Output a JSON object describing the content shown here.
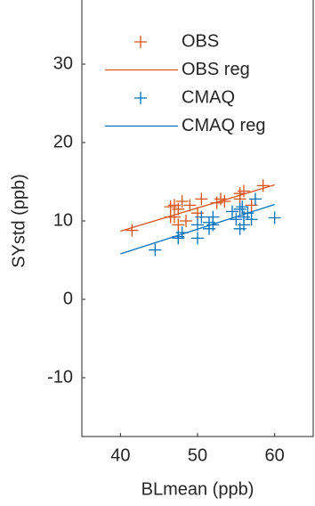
{
  "chart_data": {
    "type": "scatter",
    "xlabel": "BLmean (ppb)",
    "ylabel": "SYstd (ppb)",
    "xlim": [
      35,
      65
    ],
    "xticks": [
      40,
      50,
      60
    ],
    "ylim": [
      -17.5,
      38.5
    ],
    "yticks": [
      -10,
      0,
      10,
      20,
      30
    ],
    "legend": "upper left",
    "series": [
      {
        "name": "OBS",
        "color": "#d95319",
        "style": "marker",
        "x": [
          41.5,
          46.5,
          47,
          47.5,
          47,
          48,
          48.5,
          47.5,
          50.5,
          50,
          52.5,
          53,
          53.5,
          55.5,
          55.5,
          56,
          57,
          58.5,
          46.5,
          49
        ],
        "values": [
          8.8,
          11.8,
          10.5,
          11.5,
          12,
          12.5,
          10,
          9.5,
          12.8,
          11,
          12.3,
          12.8,
          12.5,
          12.8,
          13.5,
          13.8,
          12,
          14.5,
          10.5,
          12
        ]
      },
      {
        "name": "OBS reg",
        "color": "#d95319",
        "style": "line",
        "x": [
          40,
          60
        ],
        "values": [
          8.7,
          14.6
        ]
      },
      {
        "name": "CMAQ",
        "color": "#0072bd",
        "style": "marker",
        "x": [
          44.5,
          47.5,
          48,
          47.5,
          50,
          50.5,
          50,
          51.5,
          51.5,
          52,
          52,
          54.5,
          55,
          55.5,
          55.5,
          56,
          56,
          56.5,
          57,
          57.5,
          60,
          55.8
        ],
        "values": [
          6.3,
          8,
          8.5,
          7.8,
          9.5,
          10.5,
          7.8,
          9.8,
          9,
          10.5,
          9.5,
          11.2,
          10.2,
          9,
          11.5,
          9.5,
          10.5,
          11,
          10.2,
          12.8,
          10.4,
          11.8
        ]
      },
      {
        "name": "CMAQ reg",
        "color": "#0072bd",
        "style": "line",
        "x": [
          40,
          60
        ],
        "values": [
          5.8,
          12.1
        ]
      }
    ]
  }
}
